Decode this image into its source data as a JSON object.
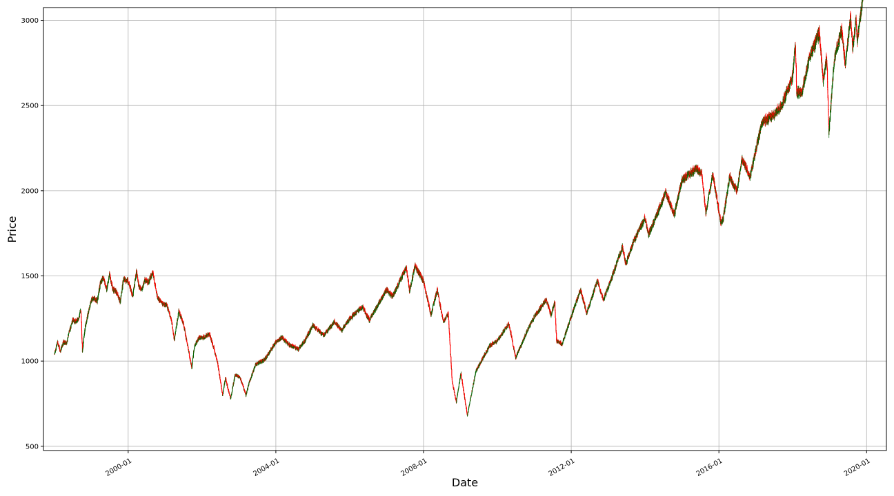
{
  "chart_data": {
    "type": "candlestick",
    "title": "",
    "xlabel": "Date",
    "ylabel": "Price",
    "x_ticks": [
      "2000-01",
      "2004-01",
      "2008-01",
      "2012-01",
      "2016-01",
      "2020-01"
    ],
    "y_ticks": [
      500,
      1000,
      1500,
      2000,
      2500,
      3000
    ],
    "xlim": [
      "1997-09-15",
      "2020-07-15"
    ],
    "ylim": [
      475,
      3075
    ],
    "grid": true,
    "colors": {
      "up": "#006400",
      "down": "#ff0000",
      "grid": "#b0b0b0"
    },
    "series": [
      {
        "points": [
          [
            "1998-01-02",
            1040
          ],
          [
            "1998-02-01",
            1110
          ],
          [
            "1998-03-01",
            1060
          ],
          [
            "1998-04-01",
            1110
          ],
          [
            "1998-05-01",
            1105
          ],
          [
            "1998-06-01",
            1180
          ],
          [
            "1998-07-01",
            1240
          ],
          [
            "1998-08-01",
            1230
          ],
          [
            "1998-09-01",
            1250
          ],
          [
            "1998-09-20",
            1310
          ],
          [
            "1998-10-05",
            1050
          ],
          [
            "1998-11-01",
            1200
          ],
          [
            "1998-12-01",
            1280
          ],
          [
            "1999-01-01",
            1360
          ],
          [
            "1999-02-01",
            1370
          ],
          [
            "1999-03-01",
            1350
          ],
          [
            "1999-04-01",
            1460
          ],
          [
            "1999-05-01",
            1490
          ],
          [
            "1999-06-01",
            1420
          ],
          [
            "1999-07-01",
            1510
          ],
          [
            "1999-08-01",
            1420
          ],
          [
            "1999-09-01",
            1410
          ],
          [
            "1999-10-15",
            1350
          ],
          [
            "1999-11-15",
            1480
          ],
          [
            "2000-01-01",
            1470
          ],
          [
            "2000-02-15",
            1380
          ],
          [
            "2000-03-24",
            1530
          ],
          [
            "2000-04-15",
            1440
          ],
          [
            "2000-05-15",
            1420
          ],
          [
            "2000-06-15",
            1480
          ],
          [
            "2000-07-15",
            1460
          ],
          [
            "2000-08-15",
            1500
          ],
          [
            "2000-09-01",
            1520
          ],
          [
            "2000-10-15",
            1380
          ],
          [
            "2000-11-15",
            1350
          ],
          [
            "2000-12-15",
            1330
          ],
          [
            "2001-01-15",
            1330
          ],
          [
            "2001-03-01",
            1250
          ],
          [
            "2001-04-01",
            1120
          ],
          [
            "2001-05-15",
            1290
          ],
          [
            "2001-07-01",
            1220
          ],
          [
            "2001-09-21",
            960
          ],
          [
            "2001-10-15",
            1080
          ],
          [
            "2001-12-01",
            1140
          ],
          [
            "2002-01-15",
            1140
          ],
          [
            "2002-03-15",
            1160
          ],
          [
            "2002-04-15",
            1100
          ],
          [
            "2002-06-01",
            1000
          ],
          [
            "2002-07-23",
            800
          ],
          [
            "2002-08-20",
            900
          ],
          [
            "2002-10-09",
            780
          ],
          [
            "2002-11-25",
            920
          ],
          [
            "2003-01-15",
            900
          ],
          [
            "2003-03-11",
            800
          ],
          [
            "2003-04-15",
            880
          ],
          [
            "2003-06-15",
            980
          ],
          [
            "2003-09-15",
            1010
          ],
          [
            "2003-12-31",
            1110
          ],
          [
            "2004-03-01",
            1140
          ],
          [
            "2004-05-01",
            1100
          ],
          [
            "2004-08-12",
            1070
          ],
          [
            "2004-10-15",
            1120
          ],
          [
            "2004-12-31",
            1210
          ],
          [
            "2005-04-15",
            1150
          ],
          [
            "2005-08-01",
            1230
          ],
          [
            "2005-10-15",
            1180
          ],
          [
            "2005-12-31",
            1250
          ],
          [
            "2006-05-05",
            1320
          ],
          [
            "2006-07-15",
            1240
          ],
          [
            "2006-12-31",
            1420
          ],
          [
            "2007-03-01",
            1380
          ],
          [
            "2007-07-15",
            1550
          ],
          [
            "2007-08-15",
            1410
          ],
          [
            "2007-10-09",
            1560
          ],
          [
            "2007-12-31",
            1470
          ],
          [
            "2008-03-15",
            1270
          ],
          [
            "2008-05-15",
            1420
          ],
          [
            "2008-07-15",
            1230
          ],
          [
            "2008-09-01",
            1280
          ],
          [
            "2008-10-10",
            880
          ],
          [
            "2008-11-20",
            760
          ],
          [
            "2009-01-05",
            930
          ],
          [
            "2009-03-09",
            680
          ],
          [
            "2009-06-01",
            940
          ],
          [
            "2009-10-15",
            1090
          ],
          [
            "2009-12-31",
            1120
          ],
          [
            "2010-04-23",
            1220
          ],
          [
            "2010-07-01",
            1020
          ],
          [
            "2010-11-01",
            1190
          ],
          [
            "2010-12-31",
            1260
          ],
          [
            "2011-04-29",
            1360
          ],
          [
            "2011-06-15",
            1270
          ],
          [
            "2011-07-22",
            1345
          ],
          [
            "2011-08-08",
            1120
          ],
          [
            "2011-10-03",
            1100
          ],
          [
            "2011-12-31",
            1260
          ],
          [
            "2012-04-02",
            1420
          ],
          [
            "2012-06-01",
            1280
          ],
          [
            "2012-09-14",
            1470
          ],
          [
            "2012-11-15",
            1360
          ],
          [
            "2012-12-31",
            1430
          ],
          [
            "2013-05-21",
            1670
          ],
          [
            "2013-06-24",
            1570
          ],
          [
            "2013-09-15",
            1710
          ],
          [
            "2013-12-31",
            1840
          ],
          [
            "2014-02-03",
            1740
          ],
          [
            "2014-07-24",
            1990
          ],
          [
            "2014-10-15",
            1860
          ],
          [
            "2014-12-31",
            2060
          ],
          [
            "2015-05-21",
            2130
          ],
          [
            "2015-07-15",
            2100
          ],
          [
            "2015-08-25",
            1870
          ],
          [
            "2015-11-01",
            2100
          ],
          [
            "2016-01-20",
            1810
          ],
          [
            "2016-02-11",
            1830
          ],
          [
            "2016-04-15",
            2080
          ],
          [
            "2016-06-27",
            2000
          ],
          [
            "2016-08-15",
            2190
          ],
          [
            "2016-11-04",
            2080
          ],
          [
            "2016-12-31",
            2240
          ],
          [
            "2017-03-01",
            2400
          ],
          [
            "2017-06-15",
            2440
          ],
          [
            "2017-09-15",
            2500
          ],
          [
            "2017-12-31",
            2670
          ],
          [
            "2018-01-26",
            2870
          ],
          [
            "2018-02-08",
            2580
          ],
          [
            "2018-04-02",
            2580
          ],
          [
            "2018-06-15",
            2780
          ],
          [
            "2018-09-20",
            2930
          ],
          [
            "2018-10-29",
            2640
          ],
          [
            "2018-12-03",
            2790
          ],
          [
            "2018-12-24",
            2350
          ],
          [
            "2019-02-15",
            2770
          ],
          [
            "2019-04-30",
            2950
          ],
          [
            "2019-06-03",
            2740
          ],
          [
            "2019-07-26",
            3020
          ],
          [
            "2019-08-15",
            2840
          ],
          [
            "2019-09-19",
            3000
          ],
          [
            "2019-10-01",
            2880
          ],
          [
            "2019-11-27",
            3150
          ]
        ]
      }
    ]
  }
}
